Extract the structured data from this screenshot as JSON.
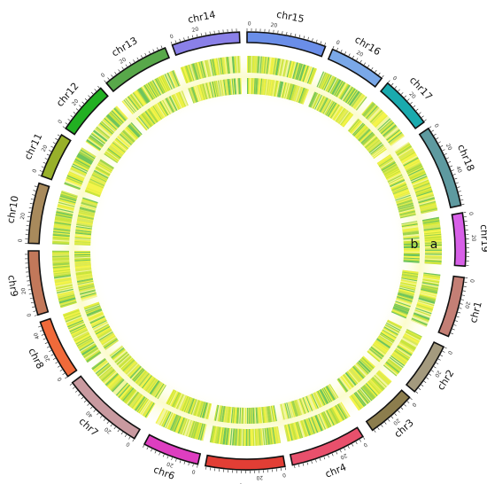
{
  "chromosomes": [
    {
      "name": "chr1",
      "color": "#c47f75",
      "ticks": [
        "0",
        "20"
      ]
    },
    {
      "name": "chr2",
      "color": "#a49a7e",
      "ticks": [
        "0",
        "20"
      ]
    },
    {
      "name": "chr3",
      "color": "#8c7d4d",
      "ticks": [
        "0",
        "20"
      ]
    },
    {
      "name": "chr4",
      "color": "#e8506c",
      "ticks": [
        "0",
        "20"
      ]
    },
    {
      "name": "chr5",
      "color": "#e23e35",
      "ticks": [
        "0",
        "20"
      ]
    },
    {
      "name": "chr6",
      "color": "#de3ec0",
      "ticks": [
        "0",
        "20"
      ]
    },
    {
      "name": "chr7",
      "color": "#c99aa0",
      "ticks": [
        "0",
        "20",
        "40"
      ]
    },
    {
      "name": "chr8",
      "color": "#f06a3a",
      "ticks": [
        "0",
        "20",
        "40"
      ]
    },
    {
      "name": "chr9",
      "color": "#c2785a",
      "ticks": [
        "0",
        "20"
      ]
    },
    {
      "name": "chr10",
      "color": "#a88a5c",
      "ticks": [
        "0",
        "20"
      ]
    },
    {
      "name": "chr11",
      "color": "#98b02a",
      "ticks": [
        "0",
        "20"
      ]
    },
    {
      "name": "chr12",
      "color": "#22b022",
      "ticks": [
        "0",
        "20"
      ]
    },
    {
      "name": "chr13",
      "color": "#58a84a",
      "ticks": [
        "0",
        "20"
      ]
    },
    {
      "name": "chr14",
      "color": "#8a80e8",
      "ticks": [
        "0",
        "20"
      ]
    },
    {
      "name": "chr15",
      "color": "#6a8ee8",
      "ticks": [
        "0",
        "20"
      ]
    },
    {
      "name": "chr16",
      "color": "#7aa8e8",
      "ticks": [
        "0",
        "20"
      ]
    },
    {
      "name": "chr17",
      "color": "#1aaaae",
      "ticks": [
        "0",
        "20"
      ]
    },
    {
      "name": "chr18",
      "color": "#5e9aa0",
      "ticks": [
        "0",
        "20",
        "40"
      ]
    },
    {
      "name": "chr19",
      "color": "#d860e8",
      "ticks": [
        "0",
        "20"
      ]
    }
  ],
  "tracks": [
    {
      "label": "a"
    },
    {
      "label": "b"
    }
  ],
  "heatmap_colors": [
    "#f4f44a",
    "#e6ee40",
    "#c8e43c",
    "#9ed44e",
    "#6cc45e",
    "#f2f6a0",
    "#d8e85a"
  ]
}
